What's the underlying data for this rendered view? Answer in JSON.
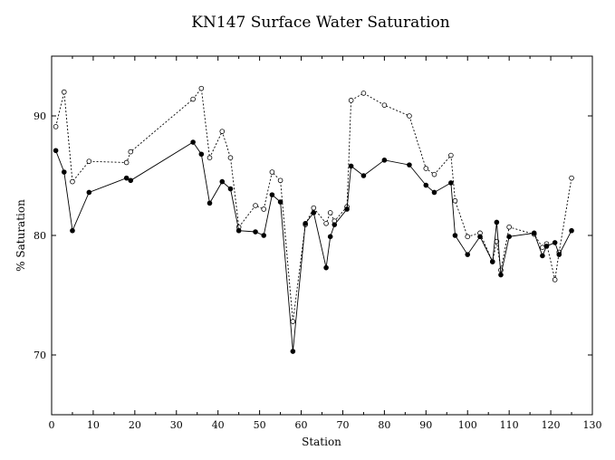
{
  "chart_data": {
    "type": "line",
    "title": "KN147 Surface Water Saturation",
    "xlabel": "Station",
    "ylabel": "% Saturation",
    "xlim": [
      0,
      130
    ],
    "ylim": [
      65,
      95
    ],
    "xticks": [
      0,
      10,
      20,
      30,
      40,
      50,
      60,
      70,
      80,
      90,
      100,
      110,
      120,
      130
    ],
    "yticks": [
      70,
      80,
      90
    ],
    "grid": false,
    "legend": "none",
    "series": [
      {
        "style": "solid",
        "marker": "filled-circle",
        "color": "#000000",
        "points": [
          [
            1,
            87.1
          ],
          [
            3,
            85.3
          ],
          [
            5,
            80.4
          ],
          [
            9,
            83.6
          ],
          [
            18,
            84.8
          ],
          [
            19,
            84.6
          ],
          [
            34,
            87.8
          ],
          [
            36,
            86.8
          ],
          [
            38,
            82.7
          ],
          [
            41,
            84.5
          ],
          [
            43,
            83.9
          ],
          [
            45,
            80.4
          ],
          [
            49,
            80.3
          ],
          [
            51,
            80.0
          ],
          [
            53,
            83.4
          ],
          [
            55,
            82.8
          ],
          [
            58,
            70.3
          ],
          [
            61,
            81.0
          ],
          [
            63,
            81.9
          ],
          [
            66,
            77.3
          ],
          [
            67,
            79.9
          ],
          [
            68,
            80.9
          ],
          [
            71,
            82.2
          ],
          [
            72,
            85.8
          ],
          [
            75,
            85.0
          ],
          [
            80,
            86.3
          ],
          [
            86,
            85.9
          ],
          [
            90,
            84.2
          ],
          [
            92,
            83.6
          ],
          [
            96,
            84.4
          ],
          [
            97,
            80.0
          ],
          [
            100,
            78.4
          ],
          [
            103,
            79.9
          ],
          [
            106,
            77.8
          ],
          [
            107,
            81.1
          ],
          [
            108,
            76.7
          ],
          [
            110,
            79.9
          ],
          [
            116,
            80.2
          ],
          [
            118,
            78.3
          ],
          [
            119,
            79.1
          ],
          [
            121,
            79.4
          ],
          [
            122,
            78.4
          ],
          [
            125,
            80.4
          ]
        ]
      },
      {
        "style": "dotted",
        "marker": "open-circle",
        "color": "#000000",
        "points": [
          [
            1,
            89.1
          ],
          [
            3,
            92.0
          ],
          [
            5,
            84.5
          ],
          [
            9,
            86.2
          ],
          [
            18,
            86.1
          ],
          [
            19,
            87.0
          ],
          [
            34,
            91.4
          ],
          [
            36,
            92.3
          ],
          [
            38,
            86.5
          ],
          [
            41,
            88.7
          ],
          [
            43,
            86.5
          ],
          [
            45,
            80.7
          ],
          [
            49,
            82.5
          ],
          [
            51,
            82.2
          ],
          [
            53,
            85.3
          ],
          [
            55,
            84.6
          ],
          [
            58,
            72.8
          ],
          [
            61,
            80.9
          ],
          [
            63,
            82.3
          ],
          [
            66,
            81.0
          ],
          [
            67,
            81.9
          ],
          [
            68,
            81.2
          ],
          [
            71,
            82.4
          ],
          [
            72,
            91.3
          ],
          [
            75,
            91.9
          ],
          [
            80,
            90.9
          ],
          [
            86,
            90.0
          ],
          [
            90,
            85.6
          ],
          [
            92,
            85.1
          ],
          [
            96,
            86.7
          ],
          [
            97,
            82.9
          ],
          [
            100,
            79.9
          ],
          [
            103,
            80.2
          ],
          [
            106,
            77.8
          ],
          [
            107,
            79.5
          ],
          [
            108,
            77.1
          ],
          [
            110,
            80.7
          ],
          [
            116,
            80.1
          ],
          [
            118,
            79.0
          ],
          [
            119,
            79.3
          ],
          [
            121,
            76.3
          ],
          [
            122,
            78.6
          ],
          [
            125,
            84.8
          ]
        ]
      }
    ]
  }
}
